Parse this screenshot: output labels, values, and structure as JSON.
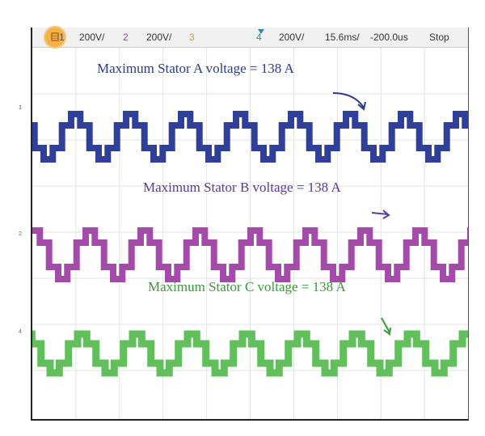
{
  "toolbar": {
    "ch1_num": "1",
    "ch1_scale": "200V/",
    "ch2_num": "2",
    "ch2_scale": "200V/",
    "ch3_num": "3",
    "ch4_num": "4",
    "ch4_scale": "200V/",
    "timebase": "15.6ms/",
    "delay": "-200.0us",
    "run_state": "Stop"
  },
  "annotations": {
    "stator_a": "Maximum Stator A voltage = 138 A",
    "stator_b": "Maximum Stator B voltage = 138 A",
    "stator_c": "Maximum Stator C voltage = 138 A"
  },
  "channel_markers": {
    "ch1": "1",
    "ch2": "2",
    "ch4": "4"
  },
  "colors": {
    "channel_a": "#2f3f9a",
    "channel_b": "#a44aa8",
    "channel_c": "#61bf5c",
    "channel_1_label": "#555555",
    "channel_2_label": "#8a4a9a",
    "channel_3_label": "#c9a23a",
    "channel_4_label": "#2b8fa6",
    "annotation_a": "#2b3a8c",
    "annotation_b": "#5a3a9a",
    "annotation_c": "#3a9a3a"
  },
  "icons": {
    "menu": "menu-icon",
    "trigger": "trigger-marker-icon"
  }
}
